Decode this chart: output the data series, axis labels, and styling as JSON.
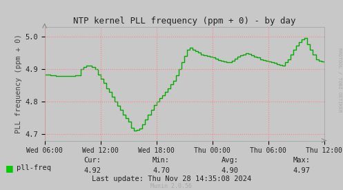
{
  "title": "NTP kernel PLL frequency (ppm + 0) - by day",
  "ylabel": "PLL frequency (ppm + 0)",
  "background_color": "#c8c8c8",
  "plot_bg_color": "#c8c8c8",
  "line_color": "#00aa00",
  "grid_color": "#ff8080",
  "ylim": [
    4.68,
    5.03
  ],
  "yticks": [
    4.7,
    4.8,
    4.9,
    5.0
  ],
  "xtick_labels": [
    "Wed 06:00",
    "Wed 12:00",
    "Wed 18:00",
    "Thu 00:00",
    "Thu 06:00",
    "Thu 12:00"
  ],
  "legend_label": "pll-freq",
  "legend_color": "#00cc00",
  "cur": "4.92",
  "min": "4.70",
  "avg": "4.90",
  "max": "4.97",
  "last_update": "Last update: Thu Nov 28 14:35:08 2024",
  "munin_version": "Munin 2.0.56",
  "rrdtool_label": "RRDTOOL / TOBI OETIKER",
  "x_values": [
    0,
    2,
    4,
    5,
    6,
    7,
    8,
    9,
    10,
    11,
    13,
    14,
    15,
    16,
    17,
    18,
    19,
    20,
    21,
    22,
    23,
    24,
    25,
    26,
    27,
    28,
    29,
    30,
    31,
    32,
    33,
    34,
    35,
    36,
    37,
    38,
    39,
    40,
    41,
    42,
    43,
    44,
    45,
    46,
    47,
    48,
    49,
    50,
    51,
    52,
    53,
    54,
    55,
    56,
    57,
    58,
    59,
    60,
    61,
    62,
    63,
    64,
    65,
    66,
    67,
    68,
    69,
    70,
    71,
    72,
    73,
    74,
    75,
    76,
    77,
    78,
    79,
    80,
    81,
    82,
    83,
    84,
    85,
    86,
    87,
    88,
    89,
    90,
    91,
    92,
    93,
    94,
    95,
    96,
    97,
    98,
    99,
    100
  ],
  "y_values": [
    4.882,
    4.88,
    4.878,
    4.878,
    4.878,
    4.878,
    4.878,
    4.878,
    4.878,
    4.88,
    4.9,
    4.905,
    4.91,
    4.91,
    4.905,
    4.9,
    4.882,
    4.87,
    4.858,
    4.84,
    4.83,
    4.815,
    4.8,
    4.788,
    4.775,
    4.76,
    4.748,
    4.738,
    4.72,
    4.71,
    4.712,
    4.718,
    4.73,
    4.745,
    4.76,
    4.775,
    4.79,
    4.8,
    4.81,
    4.82,
    4.83,
    4.84,
    4.852,
    4.864,
    4.88,
    4.9,
    4.92,
    4.94,
    4.958,
    4.965,
    4.96,
    4.955,
    4.95,
    4.945,
    4.942,
    4.94,
    4.938,
    4.935,
    4.932,
    4.928,
    4.925,
    4.922,
    4.92,
    4.92,
    4.925,
    4.932,
    4.938,
    4.942,
    4.945,
    4.948,
    4.946,
    4.942,
    4.938,
    4.935,
    4.93,
    4.928,
    4.925,
    4.922,
    4.92,
    4.918,
    4.915,
    4.912,
    4.91,
    4.92,
    4.93,
    4.945,
    4.96,
    4.972,
    4.982,
    4.99,
    4.995,
    4.975,
    4.96,
    4.945,
    4.93,
    4.925,
    4.922,
    4.92
  ]
}
